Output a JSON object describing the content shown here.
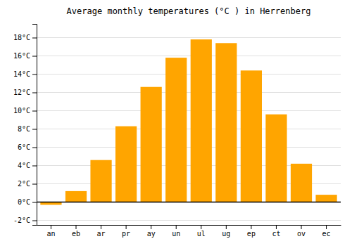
{
  "chart_data": {
    "type": "bar",
    "title": "Average monthly temperatures (°C ) in Herrenberg",
    "categories": [
      "an",
      "eb",
      "ar",
      "pr",
      "ay",
      "un",
      "ul",
      "ug",
      "ep",
      "ct",
      "ov",
      "ec"
    ],
    "values": [
      -0.3,
      1.2,
      4.6,
      8.3,
      12.6,
      15.8,
      17.8,
      17.4,
      14.4,
      9.6,
      4.2,
      0.8
    ],
    "color": "#FFA500",
    "ylim": [
      -2.5,
      19.5
    ],
    "yticks": [
      {
        "value": -2,
        "label": "-2°C"
      },
      {
        "value": 0,
        "label": "0°C"
      },
      {
        "value": 2,
        "label": "2°C"
      },
      {
        "value": 4,
        "label": "4°C"
      },
      {
        "value": 6,
        "label": "6°C"
      },
      {
        "value": 8,
        "label": "8°C"
      },
      {
        "value": 10,
        "label": "10°C"
      },
      {
        "value": 12,
        "label": "12°C"
      },
      {
        "value": 14,
        "label": "14°C"
      },
      {
        "value": 16,
        "label": "16°C"
      },
      {
        "value": 18,
        "label": "18°C"
      }
    ],
    "grid": true
  }
}
